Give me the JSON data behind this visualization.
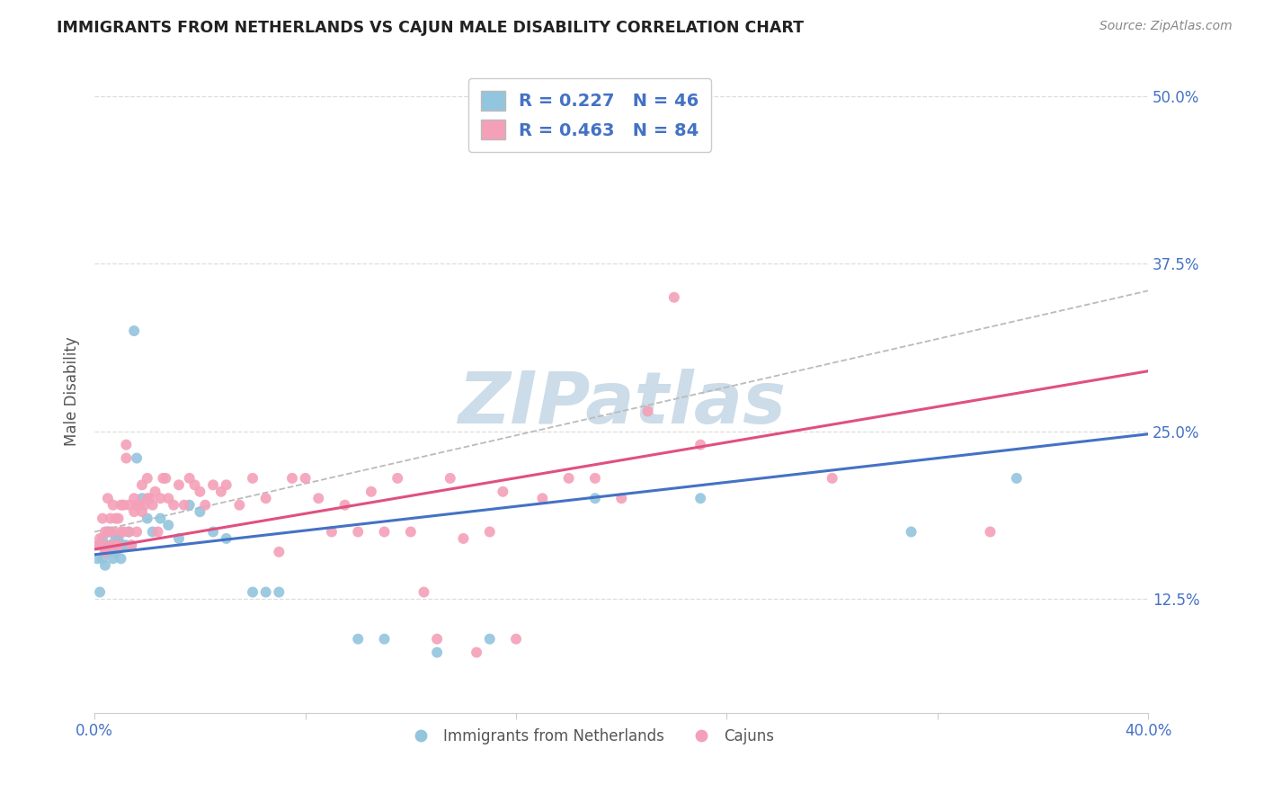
{
  "title": "IMMIGRANTS FROM NETHERLANDS VS CAJUN MALE DISABILITY CORRELATION CHART",
  "source": "Source: ZipAtlas.com",
  "ylabel": "Male Disability",
  "xlim": [
    0.0,
    0.4
  ],
  "ylim": [
    0.04,
    0.52
  ],
  "blue_label": "Immigrants from Netherlands",
  "pink_label": "Cajuns",
  "legend_r_blue": "R = 0.227",
  "legend_n_blue": "N = 46",
  "legend_r_pink": "R = 0.463",
  "legend_n_pink": "N = 84",
  "blue_color": "#92c5de",
  "pink_color": "#f4a0b8",
  "blue_line_color": "#4472c4",
  "pink_line_color": "#e05080",
  "dashed_line_color": "#bbbbbb",
  "watermark_color": "#ccdce8",
  "blue_scatter_x": [
    0.001,
    0.002,
    0.002,
    0.003,
    0.003,
    0.004,
    0.004,
    0.005,
    0.005,
    0.006,
    0.006,
    0.007,
    0.007,
    0.008,
    0.008,
    0.009,
    0.01,
    0.01,
    0.011,
    0.012,
    0.013,
    0.014,
    0.015,
    0.016,
    0.017,
    0.018,
    0.02,
    0.022,
    0.025,
    0.028,
    0.032,
    0.036,
    0.04,
    0.045,
    0.05,
    0.06,
    0.065,
    0.07,
    0.1,
    0.11,
    0.13,
    0.15,
    0.19,
    0.23,
    0.31,
    0.35
  ],
  "blue_scatter_y": [
    0.155,
    0.13,
    0.165,
    0.17,
    0.155,
    0.15,
    0.165,
    0.16,
    0.175,
    0.165,
    0.175,
    0.165,
    0.155,
    0.16,
    0.17,
    0.17,
    0.165,
    0.155,
    0.165,
    0.165,
    0.175,
    0.165,
    0.325,
    0.23,
    0.195,
    0.2,
    0.185,
    0.175,
    0.185,
    0.18,
    0.17,
    0.195,
    0.19,
    0.175,
    0.17,
    0.13,
    0.13,
    0.13,
    0.095,
    0.095,
    0.085,
    0.095,
    0.2,
    0.2,
    0.175,
    0.215
  ],
  "pink_scatter_x": [
    0.001,
    0.002,
    0.003,
    0.003,
    0.004,
    0.004,
    0.005,
    0.005,
    0.006,
    0.006,
    0.007,
    0.007,
    0.008,
    0.008,
    0.009,
    0.009,
    0.01,
    0.01,
    0.011,
    0.011,
    0.012,
    0.012,
    0.013,
    0.013,
    0.014,
    0.015,
    0.015,
    0.016,
    0.016,
    0.017,
    0.018,
    0.018,
    0.019,
    0.02,
    0.02,
    0.021,
    0.022,
    0.023,
    0.024,
    0.025,
    0.026,
    0.027,
    0.028,
    0.03,
    0.032,
    0.034,
    0.036,
    0.038,
    0.04,
    0.042,
    0.045,
    0.048,
    0.05,
    0.055,
    0.06,
    0.065,
    0.07,
    0.075,
    0.08,
    0.085,
    0.09,
    0.095,
    0.1,
    0.105,
    0.11,
    0.115,
    0.12,
    0.125,
    0.13,
    0.135,
    0.14,
    0.145,
    0.15,
    0.155,
    0.16,
    0.17,
    0.18,
    0.19,
    0.2,
    0.21,
    0.22,
    0.23,
    0.28,
    0.34
  ],
  "pink_scatter_y": [
    0.165,
    0.17,
    0.165,
    0.185,
    0.16,
    0.175,
    0.175,
    0.2,
    0.165,
    0.185,
    0.175,
    0.195,
    0.165,
    0.185,
    0.165,
    0.185,
    0.175,
    0.195,
    0.175,
    0.195,
    0.23,
    0.24,
    0.175,
    0.195,
    0.165,
    0.19,
    0.2,
    0.175,
    0.195,
    0.195,
    0.19,
    0.21,
    0.195,
    0.2,
    0.215,
    0.2,
    0.195,
    0.205,
    0.175,
    0.2,
    0.215,
    0.215,
    0.2,
    0.195,
    0.21,
    0.195,
    0.215,
    0.21,
    0.205,
    0.195,
    0.21,
    0.205,
    0.21,
    0.195,
    0.215,
    0.2,
    0.16,
    0.215,
    0.215,
    0.2,
    0.175,
    0.195,
    0.175,
    0.205,
    0.175,
    0.215,
    0.175,
    0.13,
    0.095,
    0.215,
    0.17,
    0.085,
    0.175,
    0.205,
    0.095,
    0.2,
    0.215,
    0.215,
    0.2,
    0.265,
    0.35,
    0.24,
    0.215,
    0.175
  ],
  "blue_line_x": [
    0.0,
    0.4
  ],
  "blue_line_y": [
    0.158,
    0.248
  ],
  "pink_line_x": [
    0.0,
    0.4
  ],
  "pink_line_y": [
    0.162,
    0.295
  ],
  "dashed_line_x": [
    0.0,
    0.4
  ],
  "dashed_line_y": [
    0.175,
    0.355
  ],
  "ytick_vals": [
    0.125,
    0.25,
    0.375,
    0.5
  ],
  "ytick_labels": [
    "12.5%",
    "25.0%",
    "37.5%",
    "50.0%"
  ],
  "xtick_vals": [
    0.0,
    0.08,
    0.16,
    0.24,
    0.32,
    0.4
  ],
  "xtick_show": [
    0.0,
    0.4
  ]
}
